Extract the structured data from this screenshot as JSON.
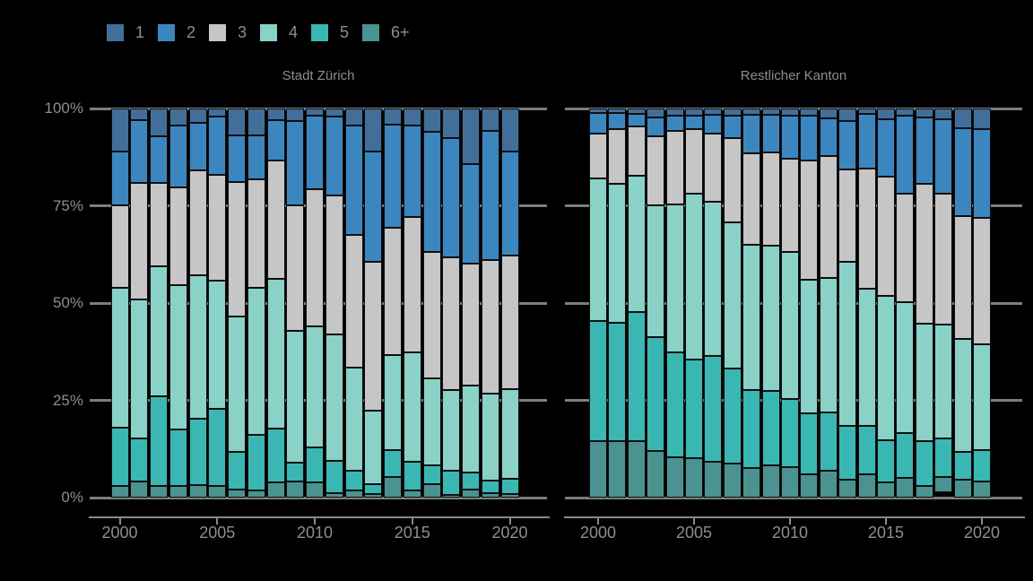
{
  "chart_data": {
    "type": "bar",
    "stacked": true,
    "percent": true,
    "grid": "behind-bars",
    "legend_position": "top-left",
    "background_color": "#000000",
    "text_color": "#8e8e8e",
    "grid_color": "#7d7d7d",
    "bar_outline_color": "#0f0f0f",
    "legend": {
      "labels": [
        "1",
        "2",
        "3",
        "4",
        "5",
        "6+"
      ],
      "colors": [
        "#426f9a",
        "#3c86c0",
        "#c6c6c6",
        "#8ad1c8",
        "#3ab7b3",
        "#4b9391"
      ]
    },
    "x": [
      2000,
      2001,
      2002,
      2003,
      2004,
      2005,
      2006,
      2007,
      2008,
      2009,
      2010,
      2011,
      2012,
      2013,
      2014,
      2015,
      2016,
      2017,
      2018,
      2019,
      2020
    ],
    "x_ticks": [
      "2000",
      "2005",
      "2010",
      "2015",
      "2020"
    ],
    "x_tick_year_index": [
      0,
      5,
      10,
      15,
      20
    ],
    "y_ticks": [
      "100%",
      "75%",
      "50%",
      "25%",
      "0%"
    ],
    "y_tick_pcts": [
      100,
      75,
      50,
      25,
      0
    ],
    "ylim": [
      0,
      100
    ],
    "panels": [
      {
        "title": "Stadt Zürich",
        "series": [
          {
            "name": "1",
            "values": [
              11.0,
              2.9,
              7.1,
              4.3,
              3.8,
              2.1,
              6.8,
              6.8,
              2.9,
              3.3,
              1.8,
              2.1,
              4.3,
              11.0,
              4.1,
              4.3,
              6.0,
              7.5,
              14.3,
              5.8,
              11.0
            ]
          },
          {
            "name": "2",
            "values": [
              13.9,
              16.2,
              12.0,
              15.9,
              12.2,
              14.9,
              12.1,
              11.3,
              10.4,
              21.6,
              18.9,
              20.3,
              28.2,
              28.4,
              26.5,
              23.5,
              30.8,
              30.7,
              25.6,
              33.1,
              26.7
            ]
          },
          {
            "name": "3",
            "values": [
              21.1,
              30.0,
              21.5,
              25.3,
              26.9,
              27.2,
              34.6,
              28.1,
              30.4,
              32.2,
              35.3,
              35.7,
              34.0,
              38.3,
              32.7,
              34.9,
              32.5,
              34.2,
              31.3,
              34.4,
              34.4
            ]
          },
          {
            "name": "4",
            "values": [
              36.1,
              35.7,
              33.4,
              37.0,
              36.9,
              33.0,
              34.7,
              37.7,
              38.6,
              34.0,
              31.1,
              32.5,
              26.6,
              18.8,
              24.6,
              28.2,
              22.4,
              20.7,
              22.3,
              22.4,
              23.1
            ]
          },
          {
            "name": "5",
            "values": [
              15.0,
              11.1,
              23.1,
              14.6,
              16.9,
              19.9,
              9.7,
              14.3,
              13.9,
              4.8,
              9.1,
              8.2,
              5.1,
              2.7,
              6.9,
              7.3,
              4.8,
              6.3,
              4.4,
              3.1,
              3.8
            ]
          },
          {
            "name": "6+",
            "values": [
              2.9,
              4.1,
              2.9,
              2.9,
              3.3,
              2.9,
              2.1,
              1.8,
              3.8,
              4.1,
              3.8,
              1.2,
              1.8,
              0.8,
              5.2,
              1.8,
              3.5,
              0.6,
              2.1,
              1.2,
              1.0
            ]
          }
        ]
      },
      {
        "title": "Restlicher Kanton",
        "series": [
          {
            "name": "1",
            "values": [
              1.2,
              1.2,
              1.4,
              2.3,
              1.8,
              1.9,
              1.5,
              1.8,
              1.5,
              1.5,
              1.8,
              1.9,
              2.5,
              3.3,
              1.4,
              2.7,
              1.9,
              2.3,
              2.8,
              5.0,
              5.4
            ]
          },
          {
            "name": "2",
            "values": [
              5.2,
              4.0,
              3.2,
              4.8,
              4.0,
              3.3,
              5.0,
              5.7,
              10.0,
              9.8,
              11.0,
              11.5,
              9.8,
              12.3,
              14.0,
              14.8,
              20.0,
              17.1,
              19.2,
              22.6,
              22.8
            ]
          },
          {
            "name": "3",
            "values": [
              11.5,
              14.2,
              12.7,
              17.8,
              18.8,
              16.8,
              17.5,
              21.7,
              23.6,
              24.0,
              24.0,
              30.5,
              31.2,
              23.8,
              30.9,
              30.6,
              27.8,
              35.9,
              33.5,
              31.7,
              32.3
            ]
          },
          {
            "name": "4",
            "values": [
              36.6,
              35.7,
              35.0,
              33.8,
              38.1,
              42.5,
              39.7,
              37.7,
              37.3,
              37.2,
              37.9,
              34.4,
              34.6,
              42.1,
              35.2,
              37.1,
              33.8,
              30.1,
              29.2,
              28.9,
              27.4
            ]
          },
          {
            "name": "5",
            "values": [
              31.1,
              30.3,
              33.3,
              29.4,
              26.9,
              25.3,
              27.1,
              24.4,
              19.9,
              19.2,
              17.4,
              15.7,
              15.1,
              14.0,
              12.5,
              11.0,
              11.5,
              11.7,
              9.9,
              7.2,
              8.0
            ]
          },
          {
            "name": "6+",
            "values": [
              14.4,
              14.6,
              14.4,
              11.9,
              10.4,
              10.2,
              9.2,
              8.7,
              7.7,
              8.3,
              7.9,
              6.0,
              6.8,
              4.5,
              6.0,
              3.8,
              5.0,
              2.9,
              4.1,
              4.6,
              4.1
            ]
          }
        ]
      }
    ]
  }
}
